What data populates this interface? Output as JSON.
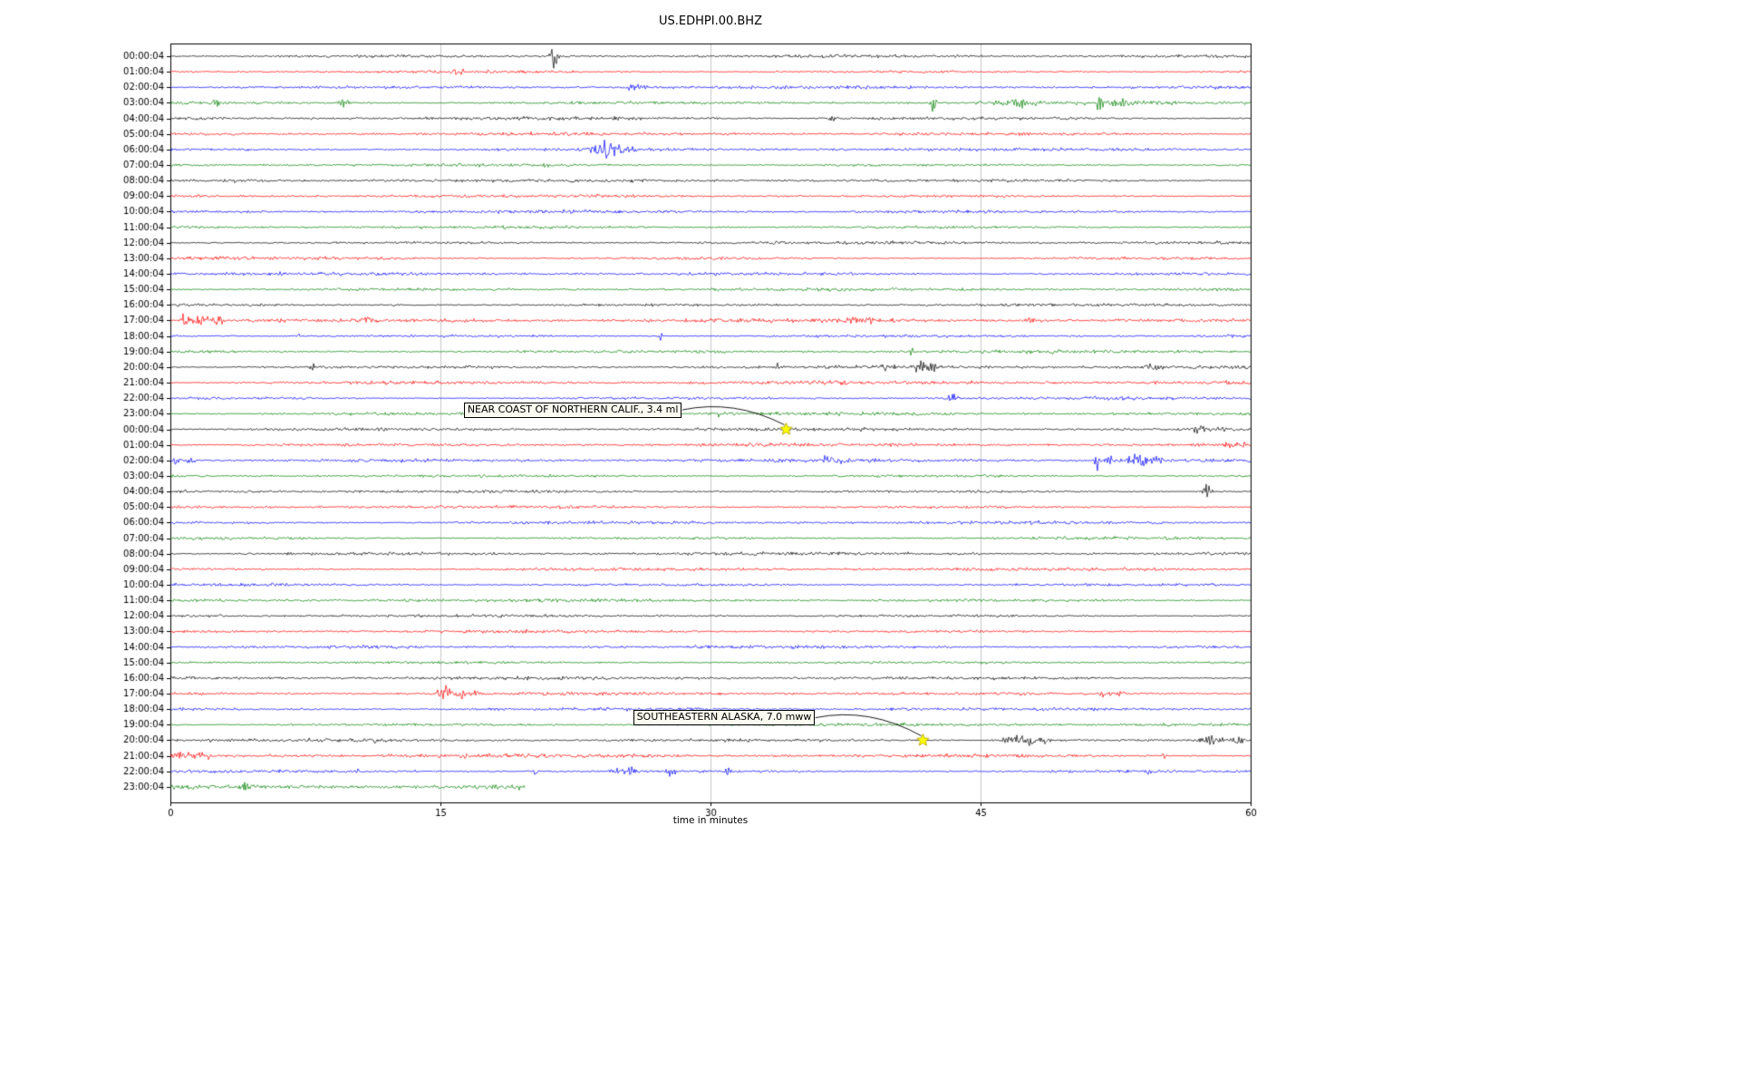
{
  "chart_data": {
    "type": "line",
    "subtype": "helicorder-dayplot-seismogram",
    "title": "US.EDHPI.00.BHZ",
    "xlabel": "time in minutes",
    "x_range_minutes": [
      0,
      60
    ],
    "x_ticks": [
      0,
      15,
      30,
      45,
      60
    ],
    "minutes_per_row": 60,
    "grid": true,
    "grid_color": "#c8c8c8",
    "event_marker_color": "#ffff00",
    "trace_color_cycle": [
      "#000000",
      "#ff0000",
      "#0000ff",
      "#008000"
    ],
    "rows": [
      {
        "label": "00:00:04",
        "color": "#000000",
        "extent_min": 60,
        "noise": 1,
        "events": [
          [
            21.3,
            12,
            0.2
          ]
        ]
      },
      {
        "label": "01:00:04",
        "color": "#ff0000",
        "extent_min": 60,
        "noise": 1,
        "events": [
          [
            16.0,
            4,
            0.5
          ]
        ]
      },
      {
        "label": "02:00:04",
        "color": "#0000ff",
        "extent_min": 60,
        "noise": 1,
        "events": [
          [
            25.8,
            3,
            0.6
          ]
        ]
      },
      {
        "label": "03:00:04",
        "color": "#008000",
        "extent_min": 60,
        "noise": 1.15,
        "events": [
          [
            2.7,
            5,
            0.25
          ],
          [
            9.7,
            4,
            0.4
          ],
          [
            42.4,
            10,
            0.15
          ],
          [
            46.8,
            4,
            1.2
          ],
          [
            51.6,
            10,
            0.2
          ],
          [
            52.6,
            4,
            0.8
          ]
        ]
      },
      {
        "label": "04:00:04",
        "color": "#000000",
        "extent_min": 60,
        "noise": 1,
        "events": [
          [
            36.8,
            2.5,
            0.3
          ]
        ]
      },
      {
        "label": "05:00:04",
        "color": "#ff0000",
        "extent_min": 60,
        "noise": 1,
        "events": []
      },
      {
        "label": "06:00:04",
        "color": "#0000ff",
        "extent_min": 60,
        "noise": 1,
        "events": [
          [
            23.6,
            5,
            0.5
          ],
          [
            24.3,
            9,
            0.5
          ],
          [
            25.1,
            4,
            0.8
          ]
        ]
      },
      {
        "label": "07:00:04",
        "color": "#008000",
        "extent_min": 60,
        "noise": 1,
        "events": [
          [
            20.8,
            2.5,
            0.3
          ]
        ]
      },
      {
        "label": "08:00:04",
        "color": "#000000",
        "extent_min": 60,
        "noise": 1,
        "events": [
          [
            3.5,
            2,
            0.3
          ]
        ]
      },
      {
        "label": "09:00:04",
        "color": "#ff0000",
        "extent_min": 60,
        "noise": 1,
        "events": []
      },
      {
        "label": "10:00:04",
        "color": "#0000ff",
        "extent_min": 60,
        "noise": 1,
        "events": []
      },
      {
        "label": "11:00:04",
        "color": "#008000",
        "extent_min": 60,
        "noise": 1,
        "events": []
      },
      {
        "label": "12:00:04",
        "color": "#000000",
        "extent_min": 60,
        "noise": 1,
        "events": []
      },
      {
        "label": "13:00:04",
        "color": "#ff0000",
        "extent_min": 60,
        "noise": 1,
        "events": []
      },
      {
        "label": "14:00:04",
        "color": "#0000ff",
        "extent_min": 60,
        "noise": 1,
        "events": []
      },
      {
        "label": "15:00:04",
        "color": "#008000",
        "extent_min": 60,
        "noise": 1,
        "events": []
      },
      {
        "label": "16:00:04",
        "color": "#000000",
        "extent_min": 60,
        "noise": 1,
        "events": [
          [
            12.5,
            2,
            0.3
          ]
        ]
      },
      {
        "label": "17:00:04",
        "color": "#ff0000",
        "extent_min": 60,
        "noise": 1.2,
        "events": [
          [
            0.8,
            6,
            0.3
          ],
          [
            1.6,
            5,
            0.6
          ],
          [
            2.6,
            4,
            0.5
          ],
          [
            10.9,
            3.5,
            0.3
          ],
          [
            38.0,
            4,
            0.5
          ],
          [
            38.8,
            3,
            0.4
          ],
          [
            47.8,
            3,
            0.4
          ]
        ]
      },
      {
        "label": "18:00:04",
        "color": "#0000ff",
        "extent_min": 60,
        "noise": 1,
        "events": [
          [
            7.2,
            4,
            0.12
          ],
          [
            27.2,
            5,
            0.12
          ]
        ]
      },
      {
        "label": "19:00:04",
        "color": "#008000",
        "extent_min": 60,
        "noise": 1,
        "events": [
          [
            41.2,
            8,
            0.12
          ],
          [
            49.2,
            2.5,
            0.4
          ]
        ]
      },
      {
        "label": "20:00:04",
        "color": "#000000",
        "extent_min": 60,
        "noise": 1.1,
        "events": [
          [
            7.9,
            3,
            0.2
          ],
          [
            17.9,
            2.5,
            0.25
          ],
          [
            33.8,
            3,
            0.25
          ],
          [
            39.7,
            4,
            0.5
          ],
          [
            41.6,
            7,
            0.3
          ],
          [
            42.3,
            4,
            0.5
          ],
          [
            54.5,
            3.5,
            0.5
          ]
        ]
      },
      {
        "label": "21:00:04",
        "color": "#ff0000",
        "extent_min": 60,
        "noise": 1.25,
        "events": []
      },
      {
        "label": "22:00:04",
        "color": "#0000ff",
        "extent_min": 60,
        "noise": 1,
        "events": [
          [
            43.4,
            4,
            0.4
          ]
        ]
      },
      {
        "label": "23:00:04",
        "color": "#008000",
        "extent_min": 60,
        "noise": 1,
        "events": [
          [
            30.6,
            2.5,
            0.4
          ]
        ]
      },
      {
        "label": "00:00:04",
        "color": "#000000",
        "extent_min": 60,
        "noise": 1,
        "events": [
          [
            57.2,
            4,
            0.5
          ],
          [
            58.4,
            4,
            0.3
          ]
        ]
      },
      {
        "label": "01:00:04",
        "color": "#ff0000",
        "extent_min": 60,
        "noise": 1,
        "events": [
          [
            58.9,
            5,
            0.4
          ],
          [
            59.6,
            4,
            0.2
          ]
        ]
      },
      {
        "label": "02:00:04",
        "color": "#0000ff",
        "extent_min": 60,
        "noise": 1.1,
        "events": [
          [
            0.3,
            4,
            0.3
          ],
          [
            1.1,
            3,
            0.3
          ],
          [
            36.6,
            3.5,
            0.4
          ],
          [
            37.4,
            2.5,
            0.3
          ],
          [
            51.5,
            9,
            0.15
          ],
          [
            52.2,
            5,
            0.25
          ],
          [
            53.8,
            5,
            0.7
          ],
          [
            55.0,
            3,
            0.4
          ]
        ]
      },
      {
        "label": "03:00:04",
        "color": "#008000",
        "extent_min": 60,
        "noise": 1,
        "events": []
      },
      {
        "label": "04:00:04",
        "color": "#000000",
        "extent_min": 60,
        "noise": 1,
        "events": [
          [
            57.6,
            7,
            0.25
          ]
        ]
      },
      {
        "label": "05:00:04",
        "color": "#ff0000",
        "extent_min": 60,
        "noise": 1,
        "events": []
      },
      {
        "label": "06:00:04",
        "color": "#0000ff",
        "extent_min": 60,
        "noise": 1,
        "events": []
      },
      {
        "label": "07:00:04",
        "color": "#008000",
        "extent_min": 60,
        "noise": 1,
        "events": []
      },
      {
        "label": "08:00:04",
        "color": "#000000",
        "extent_min": 60,
        "noise": 1,
        "events": []
      },
      {
        "label": "09:00:04",
        "color": "#ff0000",
        "extent_min": 60,
        "noise": 1,
        "events": []
      },
      {
        "label": "10:00:04",
        "color": "#0000ff",
        "extent_min": 60,
        "noise": 1,
        "events": []
      },
      {
        "label": "11:00:04",
        "color": "#008000",
        "extent_min": 60,
        "noise": 1,
        "events": []
      },
      {
        "label": "12:00:04",
        "color": "#000000",
        "extent_min": 60,
        "noise": 1,
        "events": []
      },
      {
        "label": "13:00:04",
        "color": "#ff0000",
        "extent_min": 60,
        "noise": 1,
        "events": []
      },
      {
        "label": "14:00:04",
        "color": "#0000ff",
        "extent_min": 60,
        "noise": 1,
        "events": []
      },
      {
        "label": "15:00:04",
        "color": "#008000",
        "extent_min": 60,
        "noise": 1,
        "events": []
      },
      {
        "label": "16:00:04",
        "color": "#000000",
        "extent_min": 60,
        "noise": 1,
        "events": []
      },
      {
        "label": "17:00:04",
        "color": "#ff0000",
        "extent_min": 60,
        "noise": 1,
        "events": [
          [
            15.2,
            8,
            0.4
          ],
          [
            16.0,
            4,
            0.6
          ],
          [
            16.8,
            3,
            0.5
          ],
          [
            51.9,
            3,
            0.4
          ],
          [
            52.8,
            2.5,
            0.3
          ]
        ]
      },
      {
        "label": "18:00:04",
        "color": "#0000ff",
        "extent_min": 60,
        "noise": 1,
        "events": []
      },
      {
        "label": "19:00:04",
        "color": "#008000",
        "extent_min": 60,
        "noise": 1,
        "events": []
      },
      {
        "label": "20:00:04",
        "color": "#000000",
        "extent_min": 60,
        "noise": 1,
        "events": [
          [
            10.2,
            3,
            0.2
          ],
          [
            11.4,
            2.5,
            0.2
          ],
          [
            47.3,
            5,
            1.0
          ],
          [
            48.3,
            4,
            0.8
          ],
          [
            57.8,
            4,
            0.8
          ],
          [
            59.3,
            4,
            0.3
          ]
        ]
      },
      {
        "label": "21:00:04",
        "color": "#ff0000",
        "extent_min": 60,
        "noise": 1.3,
        "events": [
          [
            0.6,
            3,
            0.8
          ],
          [
            1.8,
            2.5,
            0.6
          ],
          [
            55.2,
            6,
            0.12
          ]
        ]
      },
      {
        "label": "22:00:04",
        "color": "#0000ff",
        "extent_min": 60,
        "noise": 1,
        "events": [
          [
            10.4,
            4,
            0.15
          ],
          [
            13.6,
            3,
            0.12
          ],
          [
            20.3,
            3.5,
            0.15
          ],
          [
            24.8,
            3,
            0.5
          ],
          [
            25.6,
            4,
            0.4
          ],
          [
            27.8,
            5,
            0.3
          ],
          [
            31.0,
            3,
            0.2
          ],
          [
            54.5,
            4,
            0.2
          ]
        ]
      },
      {
        "label": "23:00:04",
        "color": "#008000",
        "extent_min": 19.7,
        "noise": 1.9,
        "events": [
          [
            4.3,
            6,
            0.3
          ]
        ]
      }
    ],
    "annotations": [
      {
        "text": "NEAR COAST OF NORTHERN CALIF., 3.4 ml",
        "target_row": 24,
        "target_minute": 34.2,
        "label_row": 22.75,
        "label_minute": 16.3
      },
      {
        "text": "SOUTHEASTERN ALASKA, 7.0 mww",
        "target_row": 44,
        "target_minute": 41.8,
        "label_row": 42.55,
        "label_minute": 25.7
      }
    ]
  }
}
